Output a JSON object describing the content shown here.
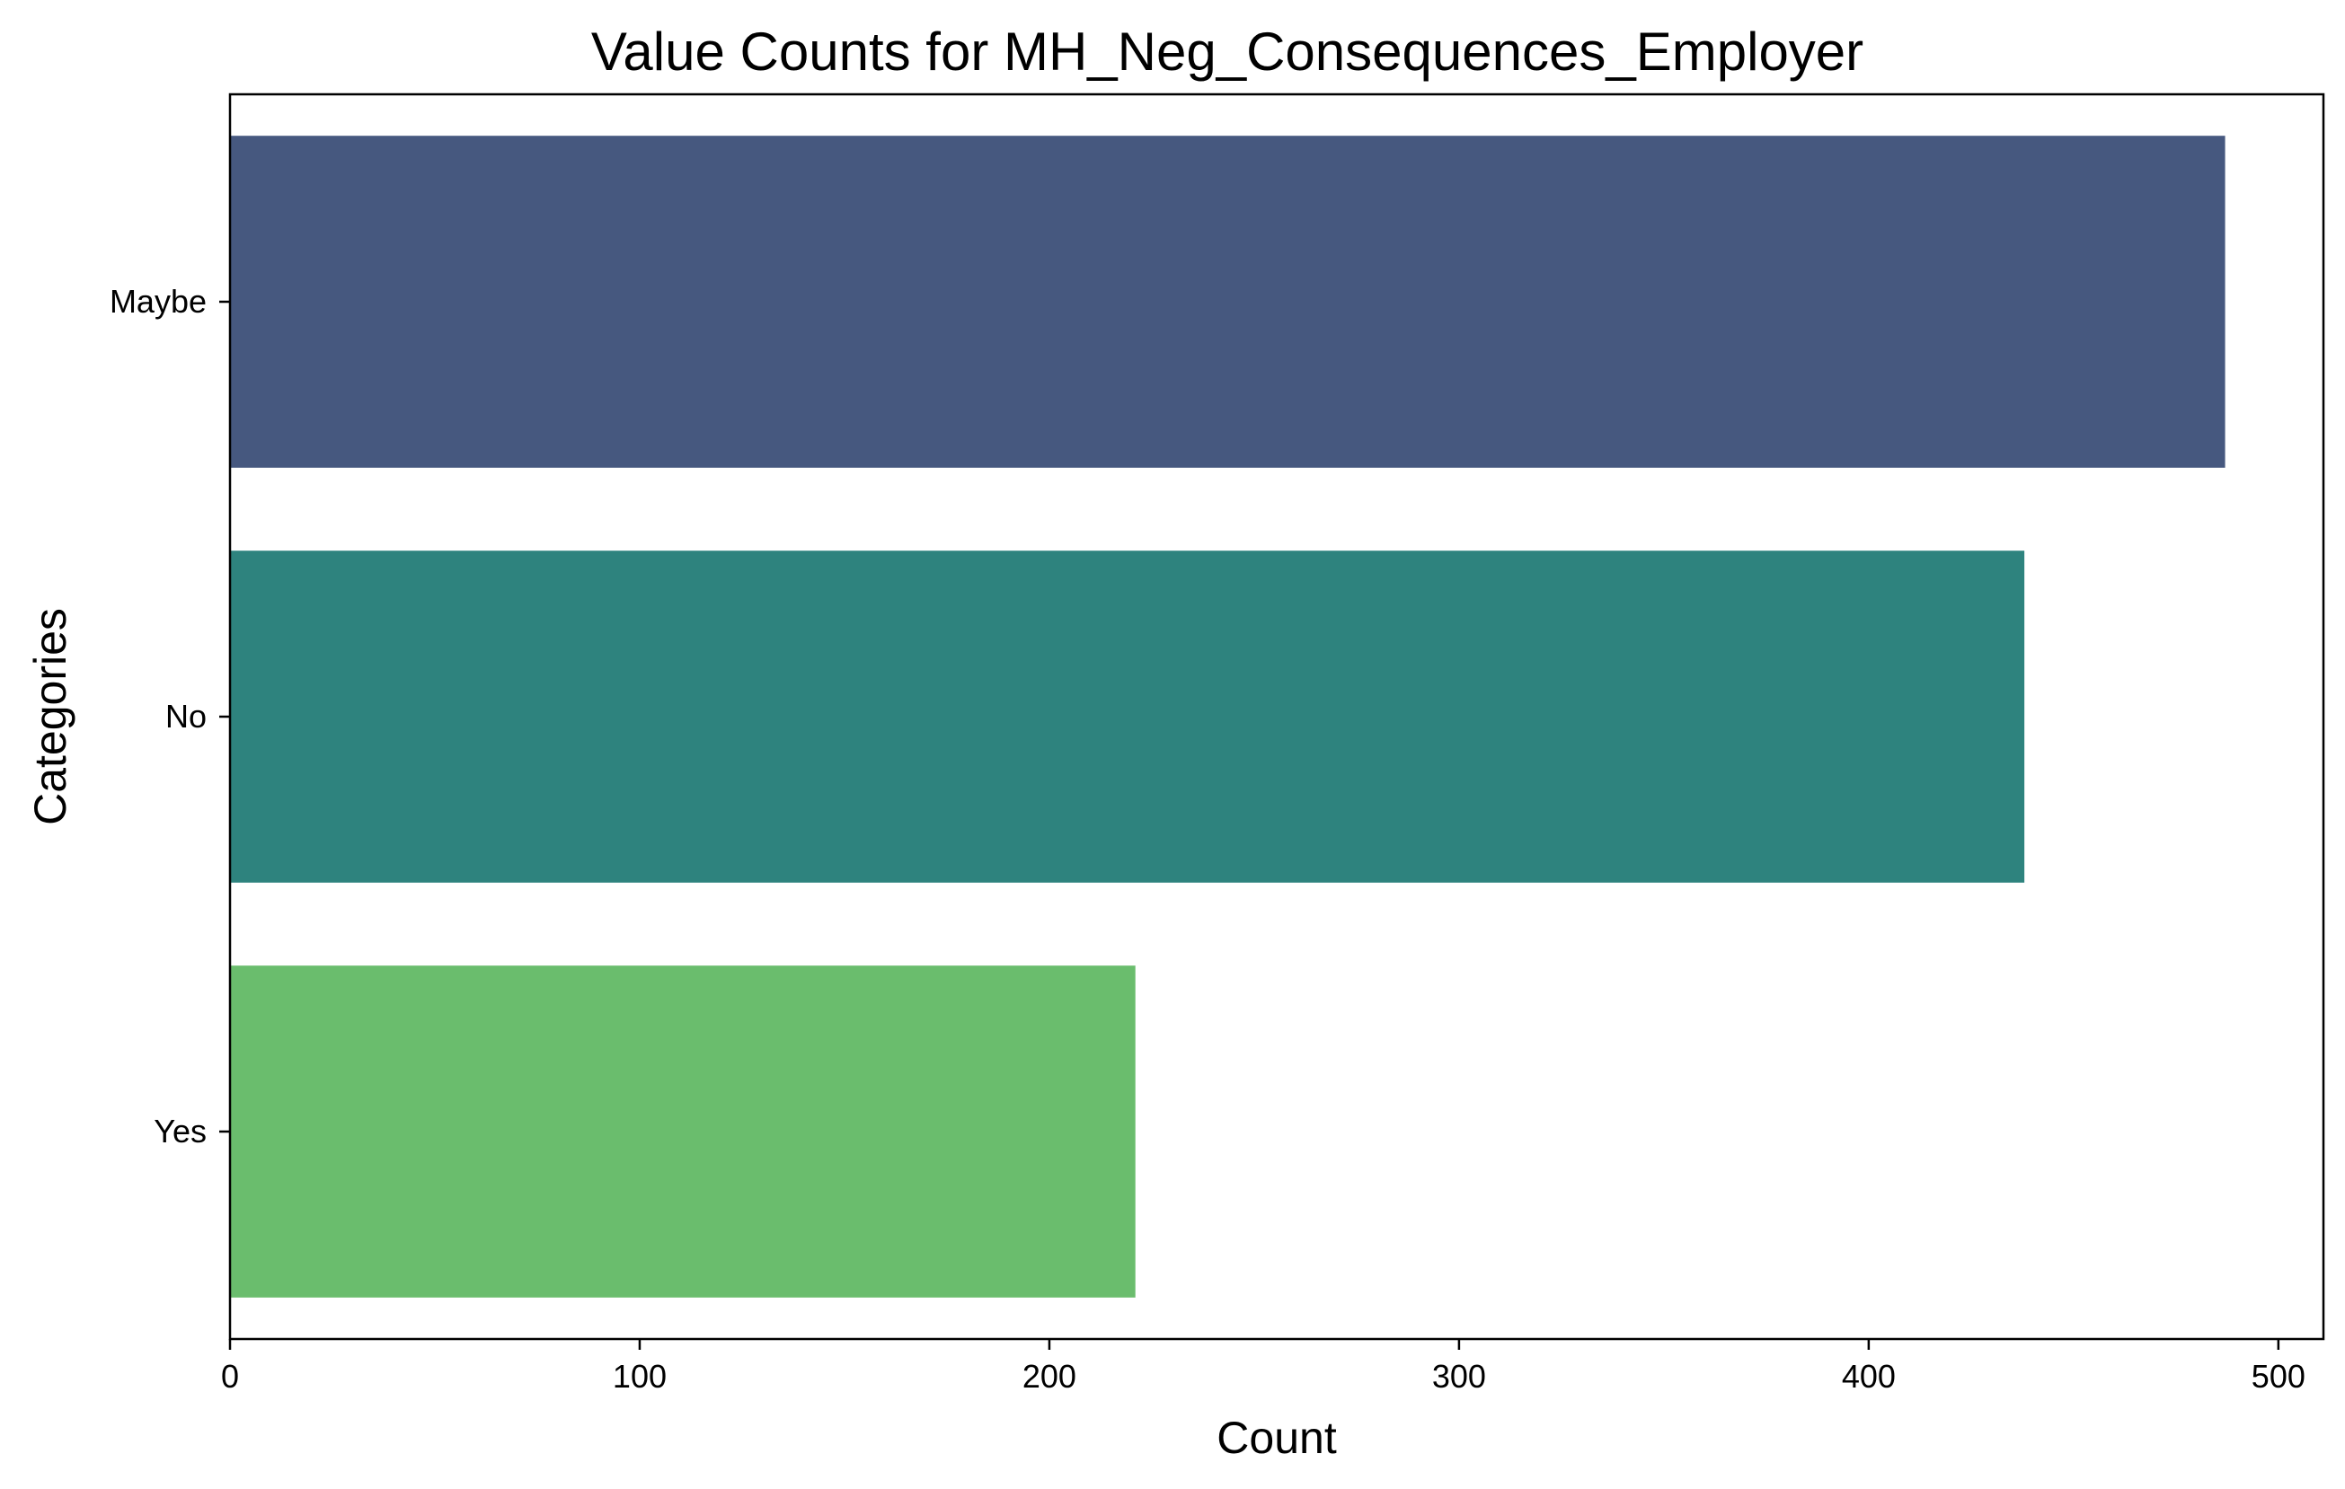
{
  "chart_data": {
    "type": "bar",
    "orientation": "horizontal",
    "title": "Value Counts for MH_Neg_Consequences_Employer",
    "xlabel": "Count",
    "ylabel": "Categories",
    "categories": [
      "Maybe",
      "No",
      "Yes"
    ],
    "values": [
      487,
      438,
      221
    ],
    "colors": [
      "#46587f",
      "#2e837e",
      "#6abd6d"
    ],
    "xlim": [
      0,
      511
    ],
    "xticks": [
      0,
      100,
      200,
      300,
      400,
      500
    ],
    "xtick_labels": [
      "0",
      "100",
      "200",
      "300",
      "400",
      "500"
    ],
    "grid": false,
    "legend": false
  }
}
